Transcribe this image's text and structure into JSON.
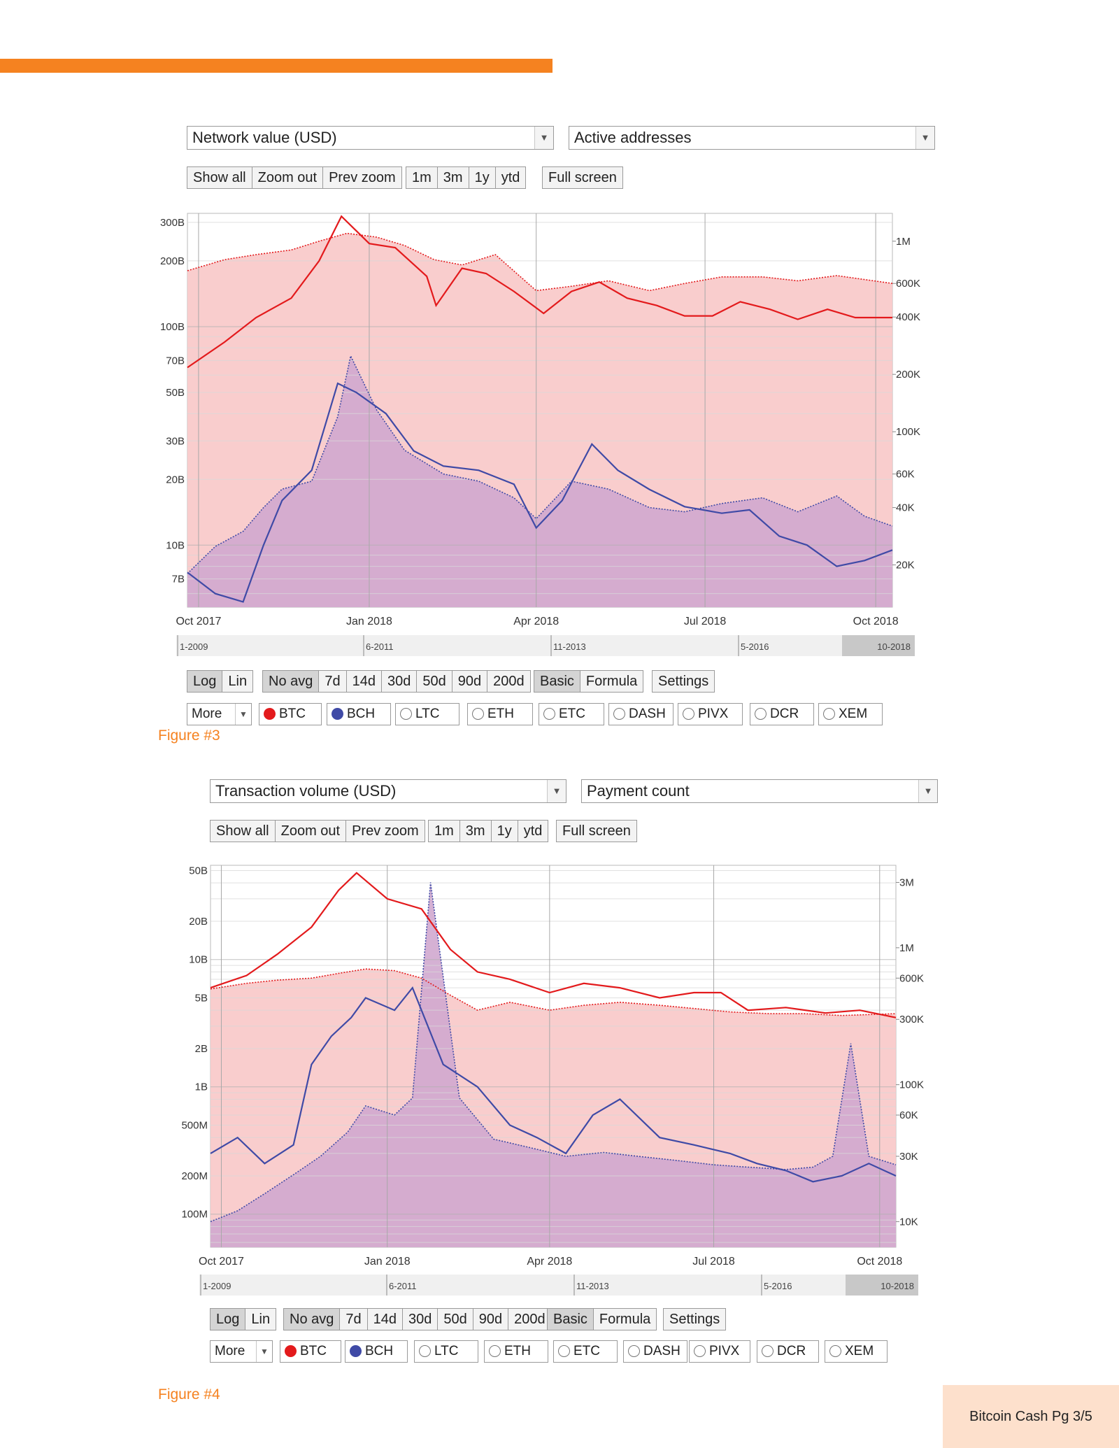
{
  "charts": [
    {
      "metric_left": "Network value (USD)",
      "metric_right": "Active addresses",
      "zoom_buttons": [
        "Show all",
        "Zoom out",
        "Prev zoom"
      ],
      "range_buttons": [
        "1m",
        "3m",
        "1y",
        "ytd"
      ],
      "fullscreen_label": "Full screen",
      "scale_buttons": [
        "Log",
        "Lin"
      ],
      "avg_buttons": [
        "No avg",
        "7d",
        "14d",
        "30d",
        "50d",
        "90d",
        "200d"
      ],
      "mode_buttons": [
        "Basic",
        "Formula"
      ],
      "settings_label": "Settings",
      "more_label": "More",
      "coins": [
        "BTC",
        "BCH",
        "LTC",
        "ETH",
        "ETC",
        "DASH",
        "PIVX",
        "DCR",
        "XEM"
      ],
      "nav_labels": [
        "1-2009",
        "6-2011",
        "11-2013",
        "5-2016",
        "10-2018"
      ],
      "figure_label": "Figure #3"
    },
    {
      "metric_left": "Transaction volume (USD)",
      "metric_right": "Payment count",
      "zoom_buttons": [
        "Show all",
        "Zoom out",
        "Prev zoom"
      ],
      "range_buttons": [
        "1m",
        "3m",
        "1y",
        "ytd"
      ],
      "fullscreen_label": "Full screen",
      "scale_buttons": [
        "Log",
        "Lin"
      ],
      "avg_buttons": [
        "No avg",
        "7d",
        "14d",
        "30d",
        "50d",
        "90d",
        "200d"
      ],
      "mode_buttons": [
        "Basic",
        "Formula"
      ],
      "settings_label": "Settings",
      "more_label": "More",
      "coins": [
        "BTC",
        "BCH",
        "LTC",
        "ETH",
        "ETC",
        "DASH",
        "PIVX",
        "DCR",
        "XEM"
      ],
      "nav_labels": [
        "1-2009",
        "6-2011",
        "11-2013",
        "5-2016",
        "10-2018"
      ],
      "figure_label": "Figure #4"
    }
  ],
  "colors": {
    "btc": "#e31a1c",
    "bch": "#3f4aa6",
    "accent": "#f58220",
    "fill_btc": "#f8c8c8",
    "fill_bch": "#d0a8cf"
  },
  "page_footer": "Bitcoin Cash Pg 3/5",
  "chart_data": [
    {
      "type": "line",
      "x_ticks": [
        "Oct 2017",
        "Jan 2018",
        "Apr 2018",
        "Jul 2018",
        "Oct 2018"
      ],
      "y_left_ticks": [
        "300B",
        "200B",
        "100B",
        "70B",
        "50B",
        "30B",
        "20B",
        "10B",
        "7B"
      ],
      "y_right_ticks": [
        "1M",
        "600K",
        "400K",
        "200K",
        "100K",
        "60K",
        "40K",
        "20K"
      ],
      "y_left_scale": "log",
      "y_right_scale": "log",
      "x_range": [
        "2017-09-25",
        "2018-10-10"
      ],
      "ylim_left": [
        5200000000.0,
        330000000000.0
      ],
      "ylim_right": [
        12000.0,
        1400000.0
      ],
      "series": [
        {
          "name": "BTC",
          "axis": "left",
          "style": "solid",
          "x": [
            "2017-09-25",
            "2017-10-15",
            "2017-11-01",
            "2017-11-20",
            "2017-12-05",
            "2017-12-17",
            "2018-01-01",
            "2018-01-15",
            "2018-02-01",
            "2018-02-06",
            "2018-02-20",
            "2018-03-05",
            "2018-03-20",
            "2018-04-05",
            "2018-04-20",
            "2018-05-05",
            "2018-05-20",
            "2018-06-05",
            "2018-06-20",
            "2018-07-05",
            "2018-07-20",
            "2018-08-05",
            "2018-08-20",
            "2018-09-05",
            "2018-09-20",
            "2018-10-10"
          ],
          "y": [
            65000000000.0,
            85000000000.0,
            110000000000.0,
            135000000000.0,
            200000000000.0,
            320000000000.0,
            240000000000.0,
            230000000000.0,
            170000000000.0,
            125000000000.0,
            185000000000.0,
            175000000000.0,
            145000000000.0,
            115000000000.0,
            145000000000.0,
            160000000000.0,
            135000000000.0,
            125000000000.0,
            112000000000.0,
            112000000000.0,
            130000000000.0,
            120000000000.0,
            108000000000.0,
            120000000000.0,
            110000000000.0,
            110000000000.0
          ]
        },
        {
          "name": "BTC Active addresses",
          "axis": "right",
          "style": "dotted",
          "x": [
            "2017-09-25",
            "2017-10-15",
            "2017-11-01",
            "2017-11-20",
            "2017-12-05",
            "2017-12-20",
            "2018-01-05",
            "2018-01-20",
            "2018-02-05",
            "2018-02-20",
            "2018-03-10",
            "2018-04-01",
            "2018-04-20",
            "2018-05-10",
            "2018-06-01",
            "2018-06-20",
            "2018-07-10",
            "2018-08-01",
            "2018-08-20",
            "2018-09-10",
            "2018-10-10"
          ],
          "y": [
            700000.0,
            800000.0,
            850000.0,
            900000.0,
            1000000.0,
            1100000.0,
            1050000.0,
            950000.0,
            800000.0,
            750000.0,
            850000.0,
            550000.0,
            580000.0,
            620000.0,
            550000.0,
            600000.0,
            650000.0,
            650000.0,
            620000.0,
            660000.0,
            600000.0
          ]
        },
        {
          "name": "BCH",
          "axis": "left",
          "style": "solid",
          "x": [
            "2017-09-25",
            "2017-10-10",
            "2017-10-25",
            "2017-11-05",
            "2017-11-15",
            "2017-12-01",
            "2017-12-15",
            "2017-12-25",
            "2018-01-10",
            "2018-01-25",
            "2018-02-10",
            "2018-03-01",
            "2018-03-20",
            "2018-04-01",
            "2018-04-15",
            "2018-05-01",
            "2018-05-15",
            "2018-06-01",
            "2018-06-20",
            "2018-07-10",
            "2018-07-25",
            "2018-08-10",
            "2018-08-25",
            "2018-09-10",
            "2018-09-25",
            "2018-10-10"
          ],
          "y": [
            7500000000.0,
            6000000000.0,
            5500000000.0,
            10000000000.0,
            16000000000.0,
            22000000000.0,
            55000000000.0,
            50000000000.0,
            40000000000.0,
            27000000000.0,
            23000000000.0,
            22000000000.0,
            19000000000.0,
            12000000000.0,
            16000000000.0,
            29000000000.0,
            22000000000.0,
            18000000000.0,
            15000000000.0,
            14000000000.0,
            14500000000.0,
            11000000000.0,
            10000000000.0,
            8000000000.0,
            8500000000.0,
            9500000000.0
          ]
        },
        {
          "name": "BCH Active addresses",
          "axis": "right",
          "style": "dotted",
          "x": [
            "2017-09-25",
            "2017-10-10",
            "2017-10-25",
            "2017-11-05",
            "2017-11-15",
            "2017-12-01",
            "2017-12-15",
            "2017-12-22",
            "2018-01-05",
            "2018-01-20",
            "2018-02-10",
            "2018-03-01",
            "2018-03-20",
            "2018-04-01",
            "2018-04-20",
            "2018-05-10",
            "2018-06-01",
            "2018-06-20",
            "2018-07-10",
            "2018-08-01",
            "2018-08-20",
            "2018-09-10",
            "2018-09-25",
            "2018-10-10"
          ],
          "y": [
            18000.0,
            25000.0,
            30000.0,
            40000.0,
            50000.0,
            55000.0,
            120000.0,
            250000.0,
            130000.0,
            80000.0,
            60000.0,
            55000.0,
            45000.0,
            35000.0,
            55000.0,
            50000.0,
            40000.0,
            38000.0,
            42000.0,
            45000.0,
            38000.0,
            46000.0,
            36000.0,
            32000.0
          ]
        }
      ]
    },
    {
      "type": "line",
      "x_ticks": [
        "Oct 2017",
        "Jan 2018",
        "Apr 2018",
        "Jul 2018",
        "Oct 2018"
      ],
      "y_left_ticks": [
        "50B",
        "20B",
        "10B",
        "5B",
        "2B",
        "1B",
        "500M",
        "200M",
        "100M"
      ],
      "y_right_ticks": [
        "3M",
        "1M",
        "600K",
        "300K",
        "100K",
        "60K",
        "30K",
        "10K"
      ],
      "y_left_scale": "log",
      "y_right_scale": "log",
      "x_range": [
        "2017-09-25",
        "2018-10-10"
      ],
      "ylim_left": [
        55000000.0,
        55000000000.0
      ],
      "ylim_right": [
        6500.0,
        4000000.0
      ],
      "series": [
        {
          "name": "BTC",
          "axis": "left",
          "style": "solid",
          "x": [
            "2017-09-25",
            "2017-10-15",
            "2017-11-01",
            "2017-11-20",
            "2017-12-05",
            "2017-12-15",
            "2018-01-01",
            "2018-01-20",
            "2018-02-05",
            "2018-02-20",
            "2018-03-10",
            "2018-04-01",
            "2018-04-20",
            "2018-05-10",
            "2018-06-01",
            "2018-06-20",
            "2018-07-05",
            "2018-07-20",
            "2018-08-10",
            "2018-09-01",
            "2018-09-20",
            "2018-10-10"
          ],
          "y": [
            6000000000.0,
            7500000000.0,
            11000000000.0,
            18000000000.0,
            35000000000.0,
            48000000000.0,
            30000000000.0,
            25000000000.0,
            12000000000.0,
            8000000000.0,
            7000000000.0,
            5500000000.0,
            6500000000.0,
            6000000000.0,
            5000000000.0,
            5500000000.0,
            5500000000.0,
            4000000000.0,
            4200000000.0,
            3800000000.0,
            4000000000.0,
            3500000000.0
          ]
        },
        {
          "name": "BTC Payment count",
          "axis": "right",
          "style": "dotted",
          "x": [
            "2017-09-25",
            "2017-10-15",
            "2017-11-01",
            "2017-11-20",
            "2017-12-05",
            "2017-12-20",
            "2018-01-05",
            "2018-01-20",
            "2018-02-05",
            "2018-02-20",
            "2018-03-10",
            "2018-04-01",
            "2018-04-20",
            "2018-05-10",
            "2018-06-01",
            "2018-06-20",
            "2018-07-10",
            "2018-08-01",
            "2018-08-20",
            "2018-09-10",
            "2018-10-10"
          ],
          "y": [
            500000.0,
            550000.0,
            580000.0,
            600000.0,
            650000.0,
            700000.0,
            680000.0,
            600000.0,
            450000.0,
            350000.0,
            400000.0,
            350000.0,
            380000.0,
            400000.0,
            380000.0,
            360000.0,
            340000.0,
            330000.0,
            330000.0,
            320000.0,
            330000.0
          ]
        },
        {
          "name": "BCH",
          "axis": "left",
          "style": "solid",
          "x": [
            "2017-09-25",
            "2017-10-10",
            "2017-10-25",
            "2017-11-10",
            "2017-11-20",
            "2017-12-01",
            "2017-12-12",
            "2017-12-20",
            "2018-01-05",
            "2018-01-15",
            "2018-02-01",
            "2018-02-20",
            "2018-03-10",
            "2018-03-25",
            "2018-04-10",
            "2018-04-25",
            "2018-05-10",
            "2018-06-01",
            "2018-06-20",
            "2018-07-10",
            "2018-07-25",
            "2018-08-10",
            "2018-08-25",
            "2018-09-10",
            "2018-09-25",
            "2018-10-10"
          ],
          "y": [
            300000000.0,
            400000000.0,
            250000000.0,
            350000000.0,
            1500000000.0,
            2500000000.0,
            3500000000.0,
            5000000000.0,
            4000000000.0,
            6000000000.0,
            1500000000.0,
            1000000000.0,
            500000000.0,
            400000000.0,
            300000000.0,
            600000000.0,
            800000000.0,
            400000000.0,
            350000000.0,
            300000000.0,
            250000000.0,
            220000000.0,
            180000000.0,
            200000000.0,
            250000000.0,
            200000000.0
          ]
        },
        {
          "name": "BCH Payment count",
          "axis": "right",
          "style": "dotted",
          "x": [
            "2017-09-25",
            "2017-10-10",
            "2017-10-25",
            "2017-11-10",
            "2017-11-25",
            "2017-12-10",
            "2017-12-20",
            "2018-01-05",
            "2018-01-15",
            "2018-01-25",
            "2018-02-10",
            "2018-03-01",
            "2018-03-20",
            "2018-04-10",
            "2018-05-01",
            "2018-05-20",
            "2018-06-10",
            "2018-07-01",
            "2018-07-20",
            "2018-08-10",
            "2018-08-25",
            "2018-09-05",
            "2018-09-15",
            "2018-09-25",
            "2018-10-10"
          ],
          "y": [
            10000.0,
            12000.0,
            16000.0,
            22000.0,
            30000.0,
            45000.0,
            70000.0,
            60000.0,
            80000.0,
            3000000.0,
            80000.0,
            40000.0,
            35000.0,
            30000.0,
            32000.0,
            30000.0,
            28000.0,
            26000.0,
            25000.0,
            24000.0,
            25000.0,
            30000.0,
            200000.0,
            30000.0,
            26000.0
          ]
        }
      ]
    }
  ]
}
